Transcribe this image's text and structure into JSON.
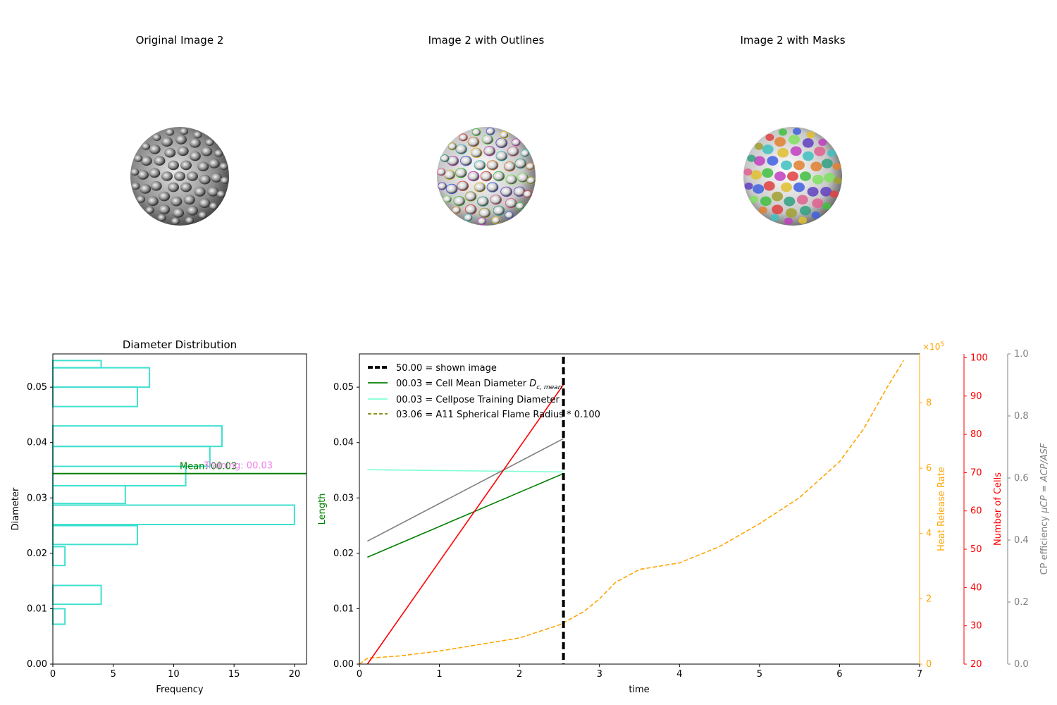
{
  "images": {
    "original_title": "Original Image 2",
    "outlines_title": "Image 2 with Outlines",
    "masks_title": "Image 2 with Masks"
  },
  "colors": {
    "histogram": "#40e0d0",
    "mean_line": "#008000",
    "training_text": "#ee82ee",
    "heat_release": "#ffa500",
    "cells": "#ff0000",
    "cp_eff": "#808080",
    "flame": "#808000",
    "training_diameter": "#7fffd4"
  },
  "chart_data": [
    {
      "type": "bar",
      "orientation": "horizontal",
      "title": "Diameter Distribution",
      "xlabel": "Frequency",
      "ylabel": "Diameter",
      "xlim": [
        0,
        21
      ],
      "ylim": [
        0,
        0.056
      ],
      "xticks": [
        "0",
        "5",
        "10",
        "15",
        "20"
      ],
      "yticks": [
        "0.00",
        "0.01",
        "0.02",
        "0.03",
        "0.04",
        "0.05"
      ],
      "bins": [
        {
          "y0": 0.0072,
          "y1": 0.01,
          "count": 1
        },
        {
          "y0": 0.0108,
          "y1": 0.0142,
          "count": 4
        },
        {
          "y0": 0.0178,
          "y1": 0.0212,
          "count": 1
        },
        {
          "y0": 0.0216,
          "y1": 0.025,
          "count": 7
        },
        {
          "y0": 0.0252,
          "y1": 0.0287,
          "count": 20
        },
        {
          "y0": 0.029,
          "y1": 0.0322,
          "count": 6
        },
        {
          "y0": 0.0322,
          "y1": 0.0357,
          "count": 11
        },
        {
          "y0": 0.0357,
          "y1": 0.0393,
          "count": 13
        },
        {
          "y0": 0.0393,
          "y1": 0.043,
          "count": 14
        },
        {
          "y0": 0.0465,
          "y1": 0.05,
          "count": 7
        },
        {
          "y0": 0.05,
          "y1": 0.0535,
          "count": 8
        },
        {
          "y0": 0.0535,
          "y1": 0.0548,
          "count": 4
        }
      ],
      "mean_line": 0.0344,
      "mean_label": "Mean: 00.03",
      "training_label": "Training: 00.03"
    },
    {
      "type": "line",
      "xlabel": "time",
      "ylabel": "Length",
      "xlim": [
        0,
        7
      ],
      "ylim": [
        0,
        0.056
      ],
      "xticks": [
        "0",
        "1",
        "2",
        "3",
        "4",
        "5",
        "6",
        "7"
      ],
      "yticks": [
        "0.00",
        "0.01",
        "0.02",
        "0.03",
        "0.04",
        "0.05"
      ],
      "vline_x": 2.55,
      "legend": [
        "50.00 = shown image",
        "00.03 = Cell Mean Diameter ",
        "00.03 = Cellpose Training Diameter",
        "03.06 = A11 Spherical Flame Radius * 0.100"
      ],
      "legend_sub": "c, mean",
      "legend_sym": "D",
      "series": [
        {
          "name": "00.03 = Cell Mean Diameter",
          "x": [
            0.1,
            2.55
          ],
          "y": [
            0.0193,
            0.0344
          ]
        },
        {
          "name": "00.03 = Cellpose Training Diameter",
          "x": [
            0.1,
            2.55
          ],
          "y": [
            0.0351,
            0.0347
          ]
        },
        {
          "x": [
            0.1,
            2.55
          ],
          "y": [
            0.0222,
            0.0407
          ]
        }
      ],
      "heat_release": {
        "axis_label": "Heat Release Rate",
        "multiplier": "×10",
        "multiplier_exp": "5",
        "ylim": [
          0,
          9.5
        ],
        "yticks": [
          "0",
          "2",
          "4",
          "6",
          "8"
        ],
        "x": [
          0,
          0.1,
          0.5,
          1.0,
          1.5,
          2.0,
          2.5,
          2.8,
          3.0,
          3.2,
          3.5,
          4.0,
          4.5,
          5.0,
          5.5,
          6.0,
          6.3,
          6.6,
          6.8
        ],
        "y": [
          0.0,
          0.18,
          0.25,
          0.4,
          0.6,
          0.8,
          1.2,
          1.6,
          2.0,
          2.5,
          2.9,
          3.1,
          3.6,
          4.3,
          5.1,
          6.2,
          7.2,
          8.5,
          9.3
        ]
      },
      "cells": {
        "axis_label": "Number of Cells",
        "ylim": [
          20,
          101
        ],
        "yticks": [
          "20",
          "30",
          "40",
          "50",
          "60",
          "70",
          "80",
          "90",
          "100"
        ],
        "x": [
          0.1,
          2.55
        ],
        "y": [
          20,
          93
        ]
      },
      "cp_efficiency": {
        "axis_label": "CP efficiency ",
        "axis_label_math": "μCP = ACP/ASF",
        "ylim": [
          0,
          1
        ],
        "yticks": [
          "0.0",
          "0.2",
          "0.4",
          "0.6",
          "0.8",
          "1.0"
        ]
      }
    }
  ]
}
